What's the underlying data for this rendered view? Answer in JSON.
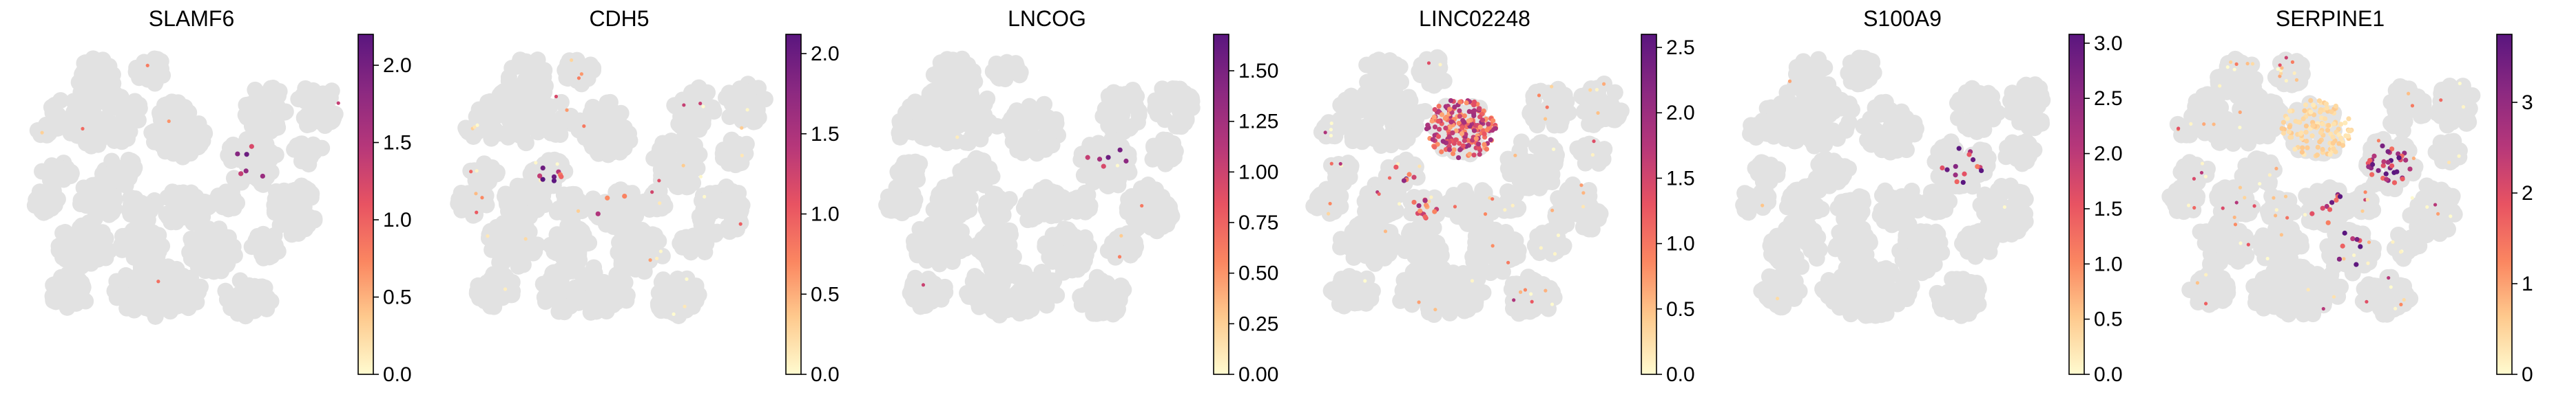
{
  "chart_data": [
    {
      "type": "scatter",
      "title": "SLAMF6",
      "colorscale": [
        "#fffbd0",
        "#fec98d",
        "#fb8761",
        "#e85362",
        "#b6377a",
        "#8c2981",
        "#5a167f"
      ],
      "background_point_color": "#e2e2e2",
      "color_range": [
        0.0,
        2.2
      ],
      "colorbar_ticks": [
        "0.0",
        "0.5",
        "1.0",
        "1.5",
        "2.0"
      ],
      "colorbar_tick_values": [
        0.0,
        0.5,
        1.0,
        1.5,
        2.0
      ],
      "expression_pattern": "sparse"
    },
    {
      "type": "scatter",
      "title": "CDH5",
      "colorscale": [
        "#fffbd0",
        "#fec98d",
        "#fb8761",
        "#e85362",
        "#b6377a",
        "#8c2981",
        "#5a167f"
      ],
      "background_point_color": "#e2e2e2",
      "color_range": [
        0.0,
        2.12
      ],
      "colorbar_ticks": [
        "0.0",
        "0.5",
        "1.0",
        "1.5",
        "2.0"
      ],
      "colorbar_tick_values": [
        0.0,
        0.5,
        1.0,
        1.5,
        2.0
      ],
      "expression_pattern": "sparse-scattered"
    },
    {
      "type": "scatter",
      "title": "LNCOG",
      "colorscale": [
        "#fffbd0",
        "#fec98d",
        "#fb8761",
        "#e85362",
        "#b6377a",
        "#8c2981",
        "#5a167f"
      ],
      "background_point_color": "#e2e2e2",
      "color_range": [
        0.0,
        1.68
      ],
      "colorbar_ticks": [
        "0.00",
        "0.25",
        "0.50",
        "0.75",
        "1.00",
        "1.25",
        "1.50"
      ],
      "colorbar_tick_values": [
        0.0,
        0.25,
        0.5,
        0.75,
        1.0,
        1.25,
        1.5
      ],
      "expression_pattern": "sparse"
    },
    {
      "type": "scatter",
      "title": "LINC02248",
      "colorscale": [
        "#fffbd0",
        "#fec98d",
        "#fb8761",
        "#e85362",
        "#b6377a",
        "#8c2981",
        "#5a167f"
      ],
      "background_point_color": "#e2e2e2",
      "color_range": [
        0.0,
        2.6
      ],
      "colorbar_ticks": [
        "0.0",
        "0.5",
        "1.0",
        "1.5",
        "2.0",
        "2.5"
      ],
      "colorbar_tick_values": [
        0.0,
        0.5,
        1.0,
        1.5,
        2.0,
        2.5
      ],
      "expression_pattern": "top-cluster"
    },
    {
      "type": "scatter",
      "title": "S100A9",
      "colorscale": [
        "#fffbd0",
        "#fec98d",
        "#fb8761",
        "#e85362",
        "#b6377a",
        "#8c2981",
        "#5a167f"
      ],
      "background_point_color": "#e2e2e2",
      "color_range": [
        0.0,
        3.08
      ],
      "colorbar_ticks": [
        "0.0",
        "0.5",
        "1.0",
        "1.5",
        "2.0",
        "2.5",
        "3.0"
      ],
      "colorbar_tick_values": [
        0.0,
        0.5,
        1.0,
        1.5,
        2.0,
        2.5,
        3.0
      ],
      "expression_pattern": "small-cluster"
    },
    {
      "type": "scatter",
      "title": "SERPINE1",
      "colorscale": [
        "#fffbd0",
        "#fec98d",
        "#fb8761",
        "#e85362",
        "#b6377a",
        "#8c2981",
        "#5a167f"
      ],
      "background_point_color": "#e2e2e2",
      "color_range": [
        0.0,
        3.75
      ],
      "colorbar_ticks": [
        "0",
        "1",
        "2",
        "3"
      ],
      "colorbar_tick_values": [
        0,
        1,
        2,
        3
      ],
      "expression_pattern": "broad-with-hotspot"
    }
  ]
}
